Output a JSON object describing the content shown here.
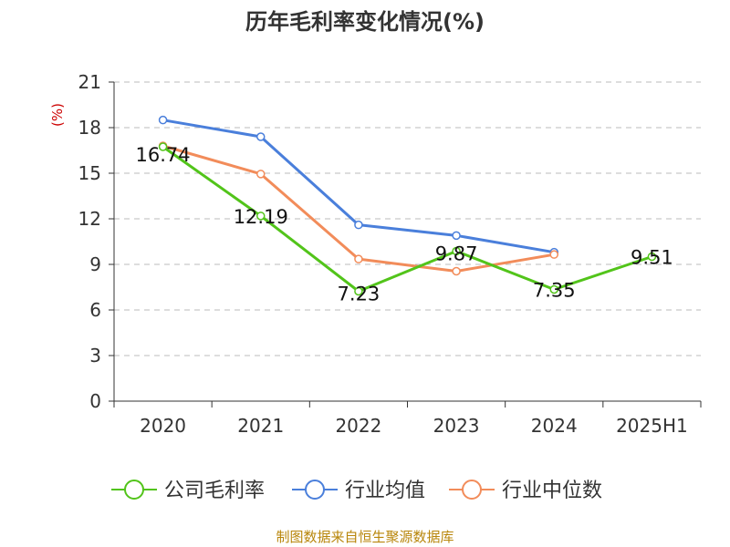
{
  "chart_data": {
    "type": "line",
    "title": "历年毛利率变化情况(%)",
    "ylabel": "(%)",
    "ylim": [
      0,
      21
    ],
    "yticks": [
      0,
      3,
      6,
      9,
      12,
      15,
      18,
      21
    ],
    "categories": [
      "2020",
      "2021",
      "2022",
      "2023",
      "2024",
      "2025H1"
    ],
    "grid": true,
    "legend_position": "bottom",
    "series": [
      {
        "name": "公司毛利率",
        "color": "#52c41a",
        "values": [
          16.74,
          12.19,
          7.23,
          9.87,
          7.35,
          9.51
        ],
        "labels": [
          "16.74",
          "12.19",
          "7.23",
          "9.87",
          "7.35",
          "9.51"
        ]
      },
      {
        "name": "行业均值",
        "color": "#4a7fdb",
        "values": [
          18.5,
          17.4,
          11.6,
          10.9,
          9.8,
          null
        ]
      },
      {
        "name": "行业中位数",
        "color": "#f28c5a",
        "values": [
          16.8,
          14.95,
          9.35,
          8.55,
          9.65,
          null
        ]
      }
    ],
    "source": "制图数据来自恒生聚源数据库"
  }
}
